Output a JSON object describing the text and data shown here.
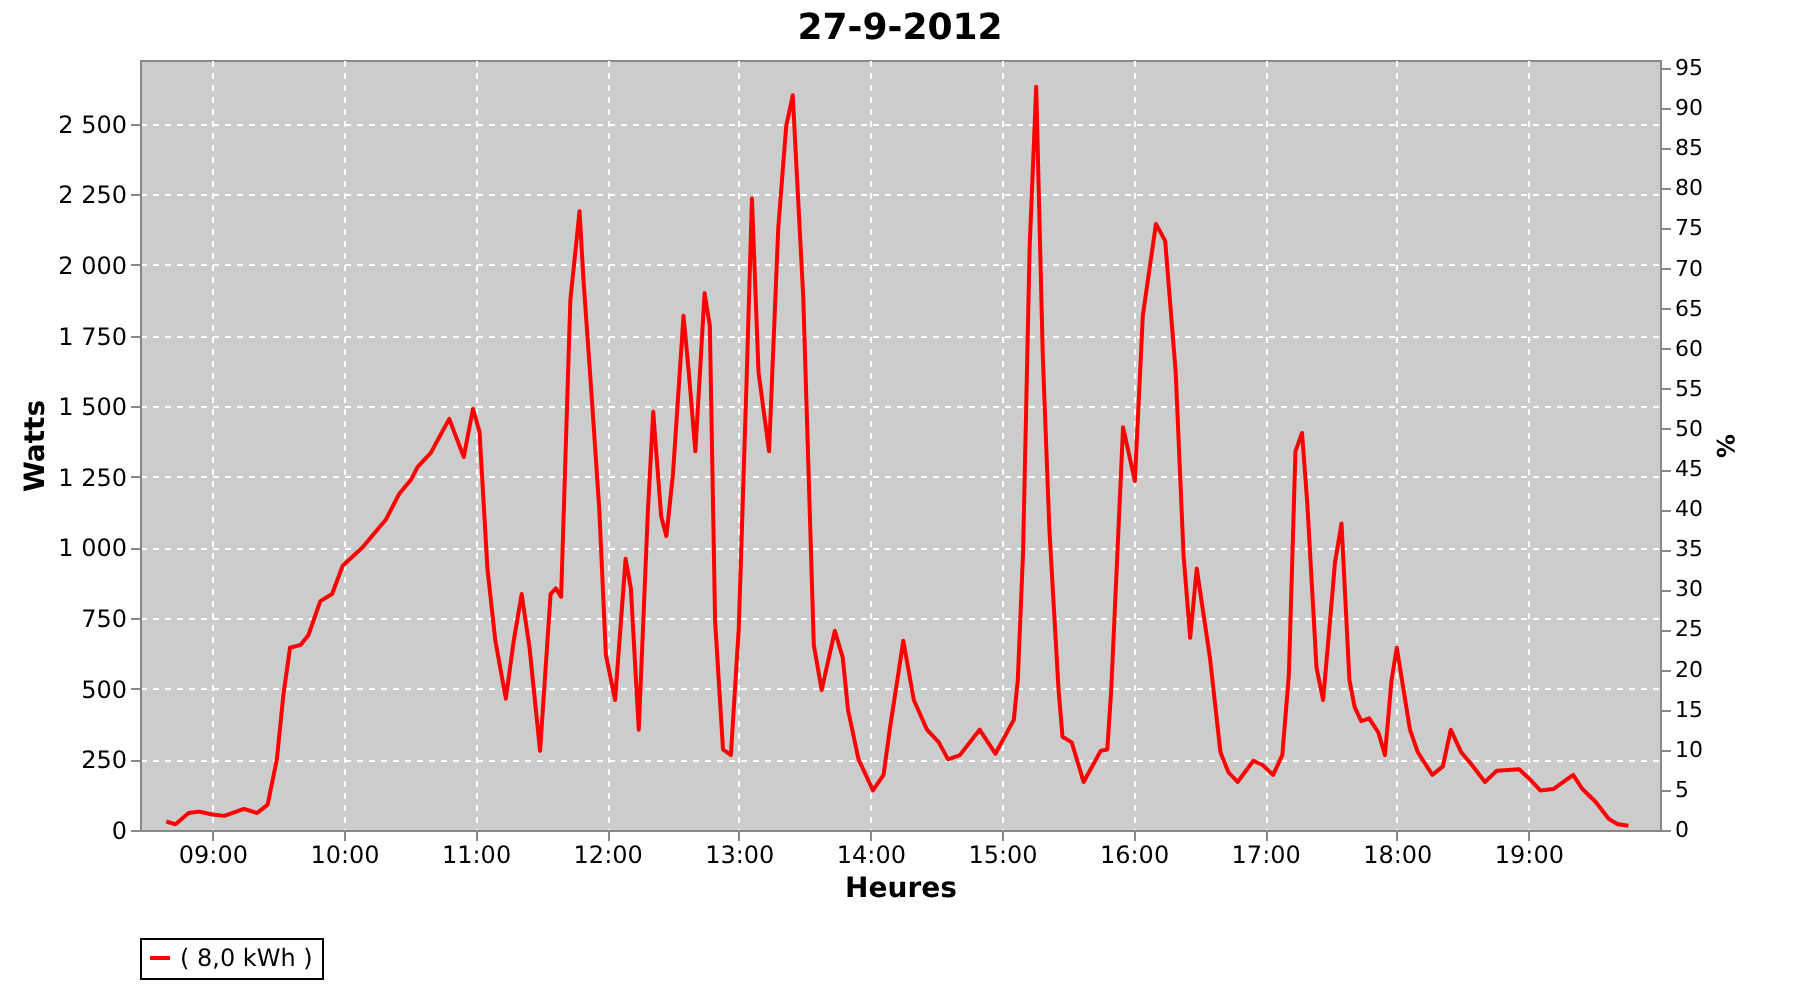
{
  "chart_data": {
    "type": "line",
    "title": "27-9-2012",
    "xlabel": "Heures",
    "ylabel": "Watts",
    "y2label": "%",
    "x": [
      8.65,
      8.72,
      8.82,
      8.9,
      9.0,
      9.09,
      9.24,
      9.34,
      9.42,
      9.49,
      9.54,
      9.59,
      9.67,
      9.73,
      9.82,
      9.91,
      9.99,
      10.14,
      10.32,
      10.42,
      10.51,
      10.56,
      10.66,
      10.8,
      10.91,
      10.98,
      11.03,
      11.09,
      11.15,
      11.23,
      11.29,
      11.35,
      11.41,
      11.49,
      11.57,
      11.61,
      11.65,
      11.72,
      11.79,
      11.82,
      11.88,
      11.94,
      11.99,
      12.06,
      12.14,
      12.18,
      12.24,
      12.31,
      12.35,
      12.41,
      12.45,
      12.5,
      12.58,
      12.62,
      12.67,
      12.74,
      12.78,
      12.82,
      12.88,
      12.94,
      13.0,
      13.06,
      13.1,
      13.15,
      13.23,
      13.3,
      13.36,
      13.41,
      13.49,
      13.57,
      13.63,
      13.73,
      13.79,
      13.83,
      13.91,
      14.02,
      14.1,
      14.15,
      14.2,
      14.25,
      14.33,
      14.43,
      14.52,
      14.59,
      14.68,
      14.83,
      14.95,
      15.09,
      15.12,
      15.16,
      15.21,
      15.26,
      15.31,
      15.36,
      15.43,
      15.46,
      15.53,
      15.62,
      15.75,
      15.8,
      15.83,
      15.92,
      16.01,
      16.07,
      16.17,
      16.24,
      16.32,
      16.38,
      16.43,
      16.48,
      16.58,
      16.66,
      16.72,
      16.79,
      16.91,
      16.98,
      17.06,
      17.13,
      17.18,
      17.23,
      17.28,
      17.32,
      17.39,
      17.44,
      17.49,
      17.53,
      17.58,
      17.64,
      17.68,
      17.73,
      17.79,
      17.86,
      17.91,
      17.96,
      18.0,
      18.1,
      18.16,
      18.27,
      18.35,
      18.41,
      18.49,
      18.58,
      18.67,
      18.76,
      18.93,
      19.01,
      19.09,
      19.19,
      19.34,
      19.41,
      19.51,
      19.61,
      19.68,
      19.76
    ],
    "series": [
      {
        "name": "( 8,0 kWh )",
        "color": "#ff0000",
        "values": [
          30,
          20,
          60,
          65,
          55,
          50,
          75,
          60,
          90,
          250,
          480,
          645,
          655,
          690,
          810,
          835,
          935,
          1000,
          1100,
          1190,
          1240,
          1285,
          1335,
          1455,
          1320,
          1490,
          1410,
          925,
          670,
          465,
          670,
          835,
          645,
          280,
          835,
          855,
          825,
          1875,
          2190,
          1945,
          1550,
          1135,
          620,
          460,
          960,
          855,
          355,
          1135,
          1480,
          1110,
          1040,
          1260,
          1820,
          1620,
          1340,
          1900,
          1785,
          740,
          285,
          265,
          715,
          1600,
          2235,
          1620,
          1340,
          2130,
          2490,
          2600,
          1885,
          655,
          495,
          705,
          610,
          425,
          250,
          140,
          195,
          365,
          515,
          670,
          460,
          355,
          310,
          250,
          265,
          355,
          270,
          390,
          530,
          980,
          2060,
          2630,
          1680,
          1065,
          495,
          330,
          310,
          170,
          280,
          285,
          495,
          1425,
          1235,
          1820,
          2145,
          2085,
          1620,
          970,
          680,
          925,
          610,
          275,
          205,
          170,
          245,
          230,
          195,
          265,
          550,
          1340,
          1405,
          1155,
          575,
          460,
          725,
          945,
          1085,
          530,
          435,
          385,
          395,
          345,
          265,
          530,
          645,
          355,
          275,
          195,
          225,
          355,
          275,
          225,
          170,
          210,
          215,
          180,
          140,
          145,
          195,
          145,
          100,
          40,
          20,
          15
        ]
      }
    ],
    "xlim": [
      8.45,
      20.0
    ],
    "xticks": [
      {
        "value": 9,
        "label": "09:00"
      },
      {
        "value": 10,
        "label": "10:00"
      },
      {
        "value": 11,
        "label": "11:00"
      },
      {
        "value": 12,
        "label": "12:00"
      },
      {
        "value": 13,
        "label": "13:00"
      },
      {
        "value": 14,
        "label": "14:00"
      },
      {
        "value": 15,
        "label": "15:00"
      },
      {
        "value": 16,
        "label": "16:00"
      },
      {
        "value": 17,
        "label": "17:00"
      },
      {
        "value": 18,
        "label": "18:00"
      },
      {
        "value": 19,
        "label": "19:00"
      }
    ],
    "ylim": [
      0,
      2725
    ],
    "yticks": [
      0,
      250,
      500,
      750,
      {
        "value": 1000,
        "label": "1 000"
      },
      {
        "value": 1250,
        "label": "1 250"
      },
      {
        "value": 1500,
        "label": "1 500"
      },
      {
        "value": 1750,
        "label": "1 750"
      },
      {
        "value": 2000,
        "label": "2 000"
      },
      {
        "value": 2250,
        "label": "2 250"
      },
      {
        "value": 2500,
        "label": "2 500"
      }
    ],
    "y2lim": [
      0,
      96
    ],
    "y2ticks": [
      0,
      5,
      10,
      15,
      20,
      25,
      30,
      35,
      40,
      45,
      50,
      55,
      60,
      65,
      70,
      75,
      80,
      85,
      90,
      95
    ],
    "grid": true,
    "legend": "bottom",
    "marker": "none",
    "line_style": "solid"
  }
}
